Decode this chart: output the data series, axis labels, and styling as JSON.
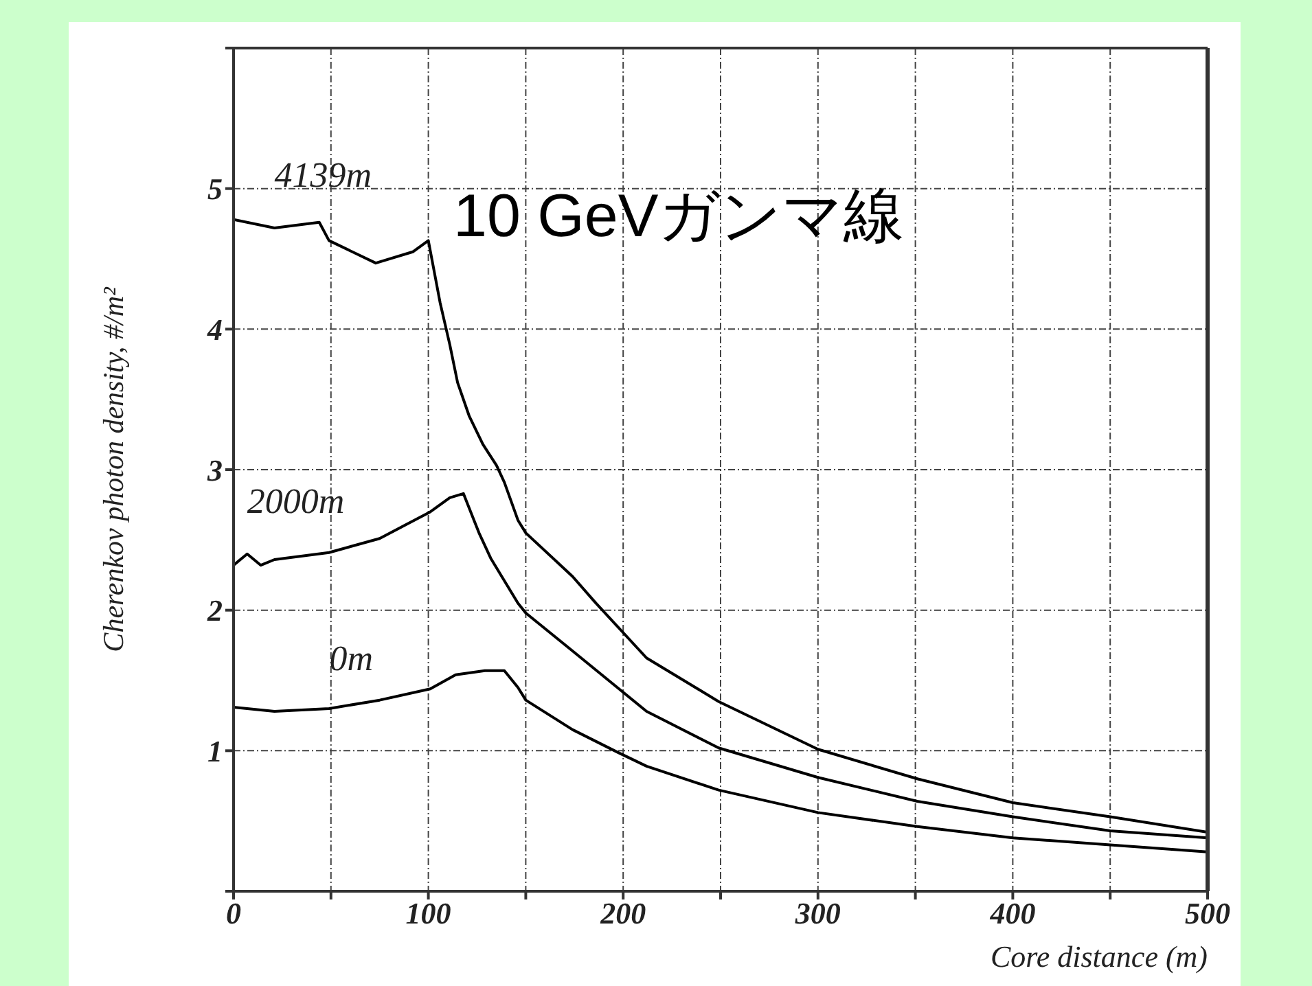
{
  "chart_data": {
    "type": "line",
    "title": "10 GeVガンマ線",
    "xlabel": "Core distance (m)",
    "ylabel": "Cherenkov photon density, #/m²",
    "xlim": [
      0,
      500
    ],
    "ylim": [
      0,
      6
    ],
    "xticks": [
      0,
      {
        "value": 50,
        "label": null
      },
      100,
      {
        "value": 150,
        "label": null
      },
      200,
      {
        "value": 250,
        "label": null
      },
      300,
      {
        "value": 350,
        "label": null
      },
      400,
      {
        "value": 450,
        "label": null
      },
      500
    ],
    "yticks": [
      {
        "value": 0,
        "label": null
      },
      1,
      2,
      3,
      4,
      5,
      {
        "value": 6,
        "label": null
      }
    ],
    "grid": true,
    "marker": "none",
    "line_style": "solid",
    "series": [
      {
        "name": "4139m",
        "color": "#000000",
        "x": [
          0,
          21,
          44,
          49,
          73,
          92,
          100,
          106,
          111,
          115,
          121,
          128,
          135,
          139,
          146,
          150,
          174,
          186,
          212,
          249,
          300,
          351,
          400,
          450,
          500
        ],
        "values": [
          4.78,
          4.72,
          4.76,
          4.63,
          4.47,
          4.55,
          4.63,
          4.19,
          3.89,
          3.62,
          3.38,
          3.18,
          3.03,
          2.91,
          2.64,
          2.55,
          2.24,
          2.05,
          1.66,
          1.35,
          1.01,
          0.8,
          0.63,
          0.53,
          0.42
        ]
      },
      {
        "name": "2000m",
        "color": "#000000",
        "x": [
          0,
          7,
          14,
          21,
          49,
          75,
          101,
          111,
          118,
          126,
          132,
          139,
          146,
          150,
          174,
          197,
          212,
          249,
          300,
          351,
          400,
          450,
          500
        ],
        "values": [
          2.32,
          2.4,
          2.32,
          2.36,
          2.41,
          2.51,
          2.7,
          2.8,
          2.83,
          2.55,
          2.37,
          2.21,
          2.05,
          1.98,
          1.71,
          1.45,
          1.28,
          1.02,
          0.81,
          0.64,
          0.53,
          0.43,
          0.38
        ]
      },
      {
        "name": "0m",
        "color": "#000000",
        "x": [
          0,
          21,
          49,
          75,
          101,
          114,
          129,
          139,
          146,
          150,
          174,
          197,
          212,
          249,
          300,
          351,
          400,
          450,
          500
        ],
        "values": [
          1.31,
          1.28,
          1.3,
          1.36,
          1.44,
          1.54,
          1.57,
          1.57,
          1.45,
          1.36,
          1.15,
          0.99,
          0.89,
          0.72,
          0.56,
          0.46,
          0.38,
          0.33,
          0.28
        ]
      }
    ]
  }
}
